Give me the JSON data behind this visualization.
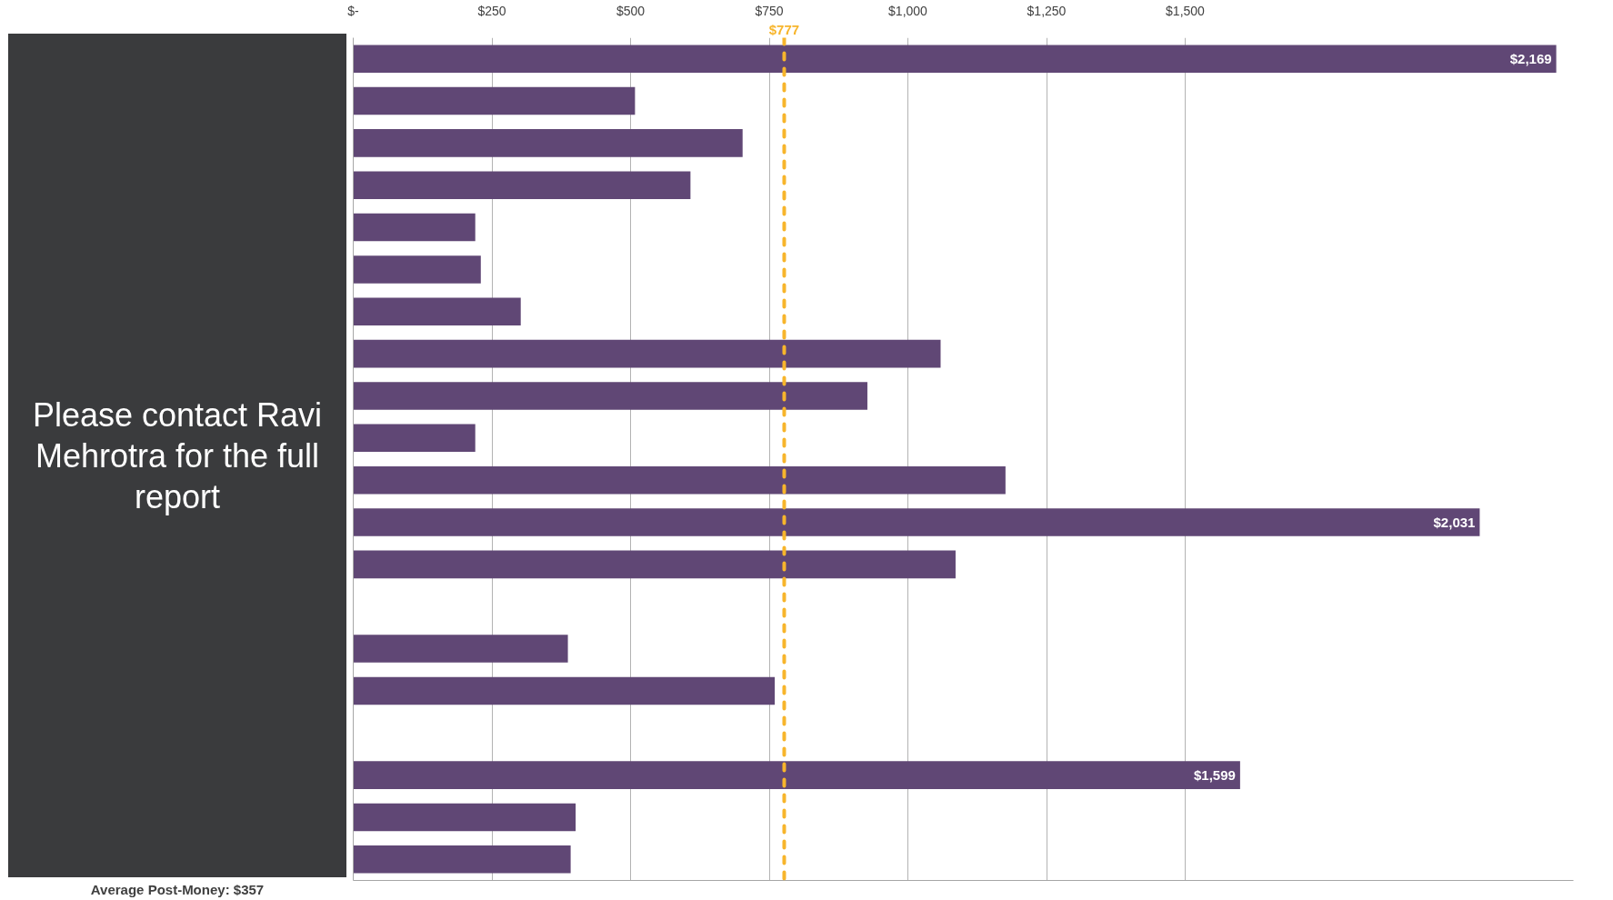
{
  "chart_data": {
    "type": "bar",
    "orientation": "horizontal",
    "categories": [
      null,
      null,
      null,
      null,
      null,
      null,
      null,
      null,
      null,
      null,
      null,
      null,
      null,
      null,
      null,
      null,
      null,
      null,
      null,
      null
    ],
    "values": [
      2169,
      508,
      702,
      608,
      220,
      230,
      302,
      1059,
      927,
      220,
      1176,
      2031,
      1086,
      null,
      387,
      760,
      null,
      1599,
      401,
      392
    ],
    "color": "#604775",
    "value_labels": [
      "$2,169",
      null,
      null,
      null,
      null,
      null,
      null,
      null,
      null,
      null,
      null,
      "$2,031",
      null,
      null,
      null,
      null,
      null,
      "$1,599",
      null,
      null
    ],
    "xlim": [
      0,
      2200
    ],
    "xticks": [
      {
        "value": 0,
        "label": "$-"
      },
      {
        "value": 250,
        "label": "$250"
      },
      {
        "value": 500,
        "label": "$500"
      },
      {
        "value": 750,
        "label": "$750"
      },
      {
        "value": 1000,
        "label": "$1,000"
      },
      {
        "value": 1250,
        "label": "$1,250"
      },
      {
        "value": 1500,
        "label": "$1,500"
      }
    ],
    "grid": "x",
    "ref_lines": [
      {
        "axis": "x",
        "value": 777,
        "label": "$777",
        "color": "#f7b52c",
        "line_style": "dashed"
      }
    ],
    "annotations": [
      "Please contact Ravi Mehrotra for the full report",
      "Average Post-Money: $357"
    ]
  }
}
